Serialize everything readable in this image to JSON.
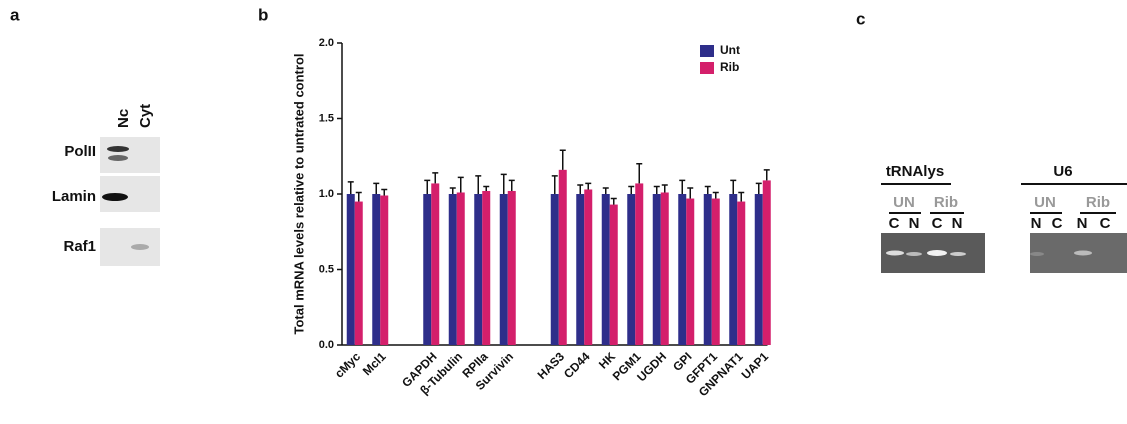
{
  "panels": {
    "a": {
      "label": "a",
      "columns": [
        "Nc",
        "Cyt"
      ],
      "rows": [
        "PolII",
        "Lamin",
        "Raf1"
      ]
    },
    "b": {
      "label": "b"
    },
    "c": {
      "label": "c",
      "groups": [
        {
          "title": "tRNAlys",
          "conditions": [
            "UN",
            "Rib"
          ],
          "lanes": [
            "C",
            "N",
            "C",
            "N"
          ]
        },
        {
          "title": "U6",
          "conditions": [
            "UN",
            "Rib"
          ],
          "lanes": [
            "N",
            "C",
            "N",
            "C"
          ]
        }
      ]
    }
  },
  "chart_data": {
    "type": "bar",
    "y_label": "Total mRNA levels relative to untrated control",
    "categories": [
      "cMyc",
      "Mcl1",
      null,
      "GAPDH",
      "β-Tubulin",
      "RPIIa",
      "Survivin",
      null,
      "HAS3",
      "CD44",
      "HK",
      "PGM1",
      "UGDH",
      "GPI",
      "GFPT1",
      "GNPNAT1",
      "UAP1"
    ],
    "series": [
      {
        "name": "Unt",
        "color": "#2e2e8a",
        "values": [
          1.0,
          1.0,
          null,
          1.0,
          1.0,
          1.0,
          1.0,
          null,
          1.0,
          1.0,
          1.0,
          1.0,
          1.0,
          1.0,
          1.0,
          1.0,
          1.0
        ],
        "errors": [
          0.08,
          0.07,
          null,
          0.09,
          0.04,
          0.12,
          0.13,
          null,
          0.12,
          0.06,
          0.04,
          0.05,
          0.05,
          0.09,
          0.05,
          0.09,
          0.07
        ]
      },
      {
        "name": "Rib",
        "color": "#d41f6b",
        "values": [
          0.95,
          0.99,
          null,
          1.07,
          1.01,
          1.02,
          1.02,
          null,
          1.16,
          1.03,
          0.93,
          1.07,
          1.01,
          0.97,
          0.97,
          0.95,
          1.09
        ],
        "errors": [
          0.06,
          0.04,
          null,
          0.07,
          0.1,
          0.03,
          0.07,
          null,
          0.13,
          0.04,
          0.04,
          0.13,
          0.05,
          0.07,
          0.04,
          0.06,
          0.07
        ]
      }
    ],
    "ylim": [
      0,
      2
    ],
    "yticks": [
      {
        "value": 0,
        "label": "0.0"
      },
      {
        "value": 0.5,
        "label": "0.5"
      },
      {
        "value": 1,
        "label": "1.0"
      },
      {
        "value": 1.5,
        "label": "1.5"
      },
      {
        "value": 2,
        "label": "2.0"
      }
    ],
    "legend": "upper right"
  }
}
